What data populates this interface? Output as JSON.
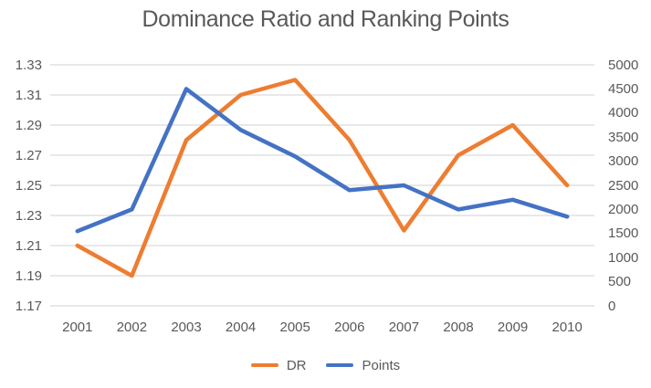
{
  "title": "Dominance Ratio and Ranking Points",
  "colors": {
    "dr_orange": "#ED7D31",
    "points_blue": "#4472C4",
    "gridline": "#D9D9D9",
    "axis_text": "#595959",
    "title_text": "#595959",
    "background": "#FFFFFF"
  },
  "legend": {
    "items": [
      {
        "label": "DR",
        "color": "#ED7D31"
      },
      {
        "label": "Points",
        "color": "#4472C4"
      }
    ]
  },
  "chart_data": {
    "type": "line",
    "title": "Dominance Ratio and Ranking Points",
    "categories": [
      "2001",
      "2002",
      "2003",
      "2004",
      "2005",
      "2006",
      "2007",
      "2008",
      "2009",
      "2010"
    ],
    "series": [
      {
        "name": "DR",
        "axis": "left",
        "color": "#ED7D31",
        "values": [
          1.21,
          1.19,
          1.28,
          1.31,
          1.32,
          1.28,
          1.22,
          1.27,
          1.29,
          1.25
        ]
      },
      {
        "name": "Points",
        "axis": "right",
        "color": "#4472C4",
        "values": [
          1550,
          2000,
          4500,
          3650,
          3100,
          2400,
          2500,
          2000,
          2200,
          1850
        ]
      }
    ],
    "left_axis": {
      "min": 1.17,
      "max": 1.33,
      "step": 0.02,
      "tick_labels_top_to_bottom": [
        "1.33",
        "1.31",
        "1.29",
        "1.27",
        "1.25",
        "1.23",
        "1.21",
        "1.19",
        "1.17"
      ]
    },
    "right_axis": {
      "min": 0,
      "max": 5000,
      "step": 500,
      "tick_labels_top_to_bottom": [
        "5000",
        "4500",
        "4000",
        "3500",
        "3000",
        "2500",
        "2000",
        "1500",
        "1000",
        "500",
        "0"
      ]
    },
    "grid": true,
    "legend_position": "bottom"
  }
}
